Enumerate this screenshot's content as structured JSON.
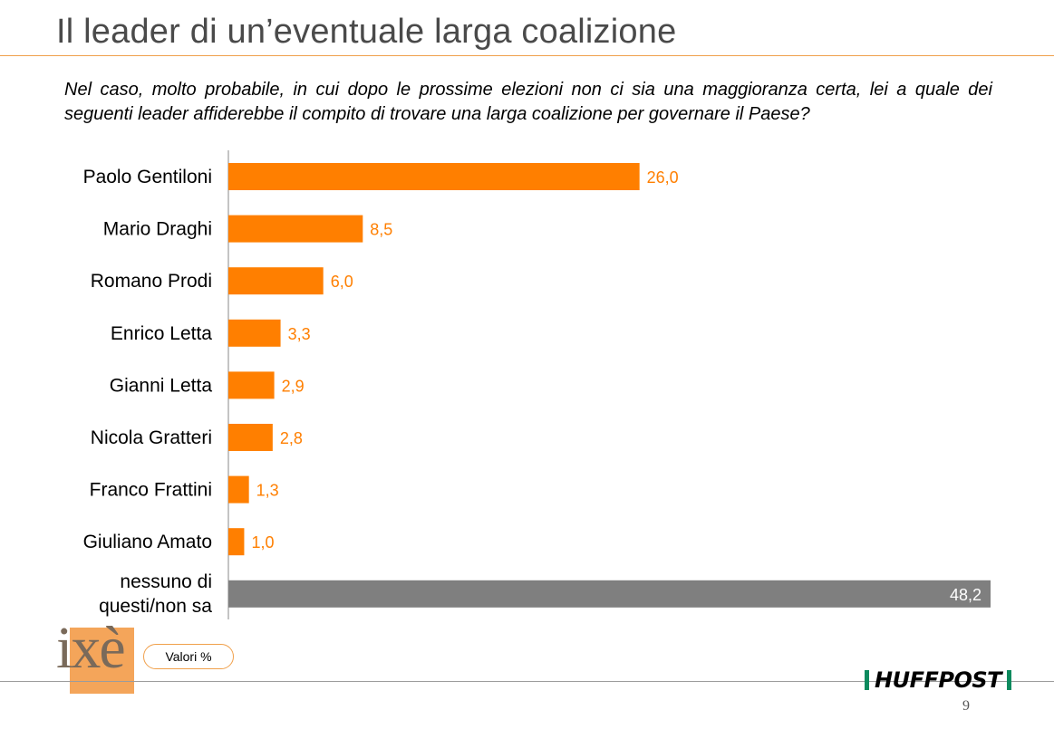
{
  "header": {
    "title": "Il leader di un’eventuale larga coalizione",
    "question": "Nel caso, molto probabile, in cui dopo le prossime elezioni non ci sia una maggioranza certa, lei a quale dei seguenti leader affiderebbe il compito di trovare una larga coalizione per governare il Paese?"
  },
  "colors": {
    "accent": "#ff7f00",
    "neutral": "#7f7f7f",
    "rule": "#f0a04b",
    "brand_green": "#0d8a5e"
  },
  "footer": {
    "badge": "Valori %",
    "logo_text": "ixè",
    "brand": "HUFFPOST",
    "page_number": "9"
  },
  "chart_data": {
    "type": "bar",
    "orientation": "horizontal",
    "categories": [
      "Paolo Gentiloni",
      "Mario Draghi",
      "Romano Prodi",
      "Enrico Letta",
      "Gianni Letta",
      "Nicola Gratteri",
      "Franco Frattini",
      "Giuliano Amato",
      "nessuno di questi/non sa"
    ],
    "values": [
      26.0,
      8.5,
      6.0,
      3.3,
      2.9,
      2.8,
      1.3,
      1.0,
      48.2
    ],
    "value_labels": [
      "26,0",
      "8,5",
      "6,0",
      "3,3",
      "2,9",
      "2,8",
      "1,3",
      "1,0",
      "48,2"
    ],
    "bar_colors": [
      "#ff7f00",
      "#ff7f00",
      "#ff7f00",
      "#ff7f00",
      "#ff7f00",
      "#ff7f00",
      "#ff7f00",
      "#ff7f00",
      "#7f7f7f"
    ],
    "xlim": [
      0,
      48.2
    ],
    "grid": false,
    "legend": "none"
  }
}
